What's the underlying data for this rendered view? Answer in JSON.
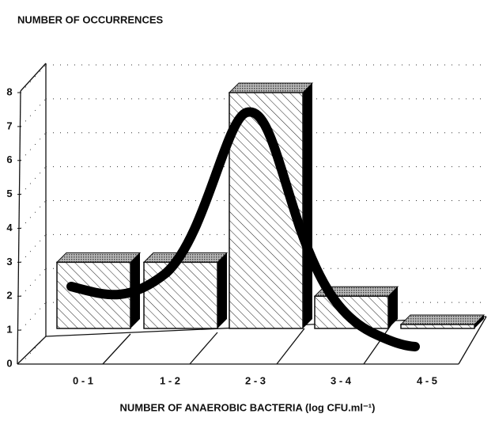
{
  "chart_data": {
    "type": "bar",
    "title": "NUMBER OF OCCURRENCES",
    "x_label": "NUMBER OF ANAEROBIC BACTERIA (log CFU.ml⁻¹)",
    "categories": [
      "0 - 1",
      "1 - 2",
      "2 - 3",
      "3 - 4",
      "4 - 5"
    ],
    "values": [
      3,
      3,
      8,
      2,
      0
    ],
    "color": "#ffffff",
    "ylim": [
      0,
      8
    ],
    "yticks": [
      0,
      1,
      2,
      3,
      4,
      5,
      6,
      7,
      8
    ],
    "grid": true
  }
}
